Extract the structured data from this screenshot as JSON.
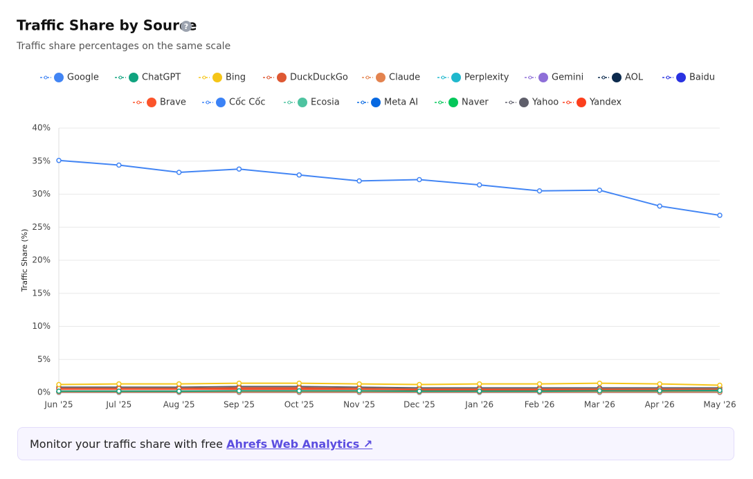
{
  "chart_data": {
    "type": "line",
    "title": "Traffic Share by Source",
    "subtitle": "Traffic share percentages on the same scale",
    "y_label": "Traffic Share (%)",
    "categories": [
      "Jun '25",
      "Jul '25",
      "Aug '25",
      "Sep '25",
      "Oct '25",
      "Nov '25",
      "Dec '25",
      "Jan '26",
      "Feb '26",
      "Mar '26",
      "Apr '26",
      "May '26"
    ],
    "ylim": [
      0,
      40
    ],
    "yticks": [
      {
        "value": 0,
        "label": "0%"
      },
      {
        "value": 5,
        "label": "5%"
      },
      {
        "value": 10,
        "label": "10%"
      },
      {
        "value": 15,
        "label": "15%"
      },
      {
        "value": 20,
        "label": "20%"
      },
      {
        "value": 25,
        "label": "25%"
      },
      {
        "value": 30,
        "label": "30%"
      },
      {
        "value": 35,
        "label": "35%"
      },
      {
        "value": 40,
        "label": "40%"
      }
    ],
    "grid": true,
    "series": [
      {
        "name": "Google",
        "color": "#4285f4",
        "values": [
          35.1,
          34.4,
          33.3,
          33.8,
          32.9,
          32.0,
          32.2,
          31.4,
          30.5,
          30.6,
          28.2,
          26.8
        ]
      },
      {
        "name": "ChatGPT",
        "color": "#10a37f",
        "values": [
          0.2,
          0.2,
          0.2,
          0.25,
          0.25,
          0.25,
          0.2,
          0.2,
          0.2,
          0.25,
          0.25,
          0.3
        ]
      },
      {
        "name": "Bing",
        "color": "#f5c518",
        "values": [
          1.2,
          1.3,
          1.3,
          1.4,
          1.4,
          1.3,
          1.2,
          1.3,
          1.3,
          1.4,
          1.3,
          1.1
        ]
      },
      {
        "name": "DuckDuckGo",
        "color": "#de5833",
        "values": [
          0.6,
          0.6,
          0.6,
          0.7,
          0.7,
          0.6,
          0.5,
          0.5,
          0.5,
          0.5,
          0.5,
          0.5
        ]
      },
      {
        "name": "Claude",
        "color": "#e3834f",
        "values": [
          0.05,
          0.05,
          0.05,
          0.05,
          0.05,
          0.05,
          0.05,
          0.05,
          0.05,
          0.05,
          0.05,
          0.05
        ]
      },
      {
        "name": "Perplexity",
        "color": "#20b8cd",
        "values": [
          0.1,
          0.1,
          0.1,
          0.1,
          0.1,
          0.1,
          0.1,
          0.1,
          0.1,
          0.1,
          0.1,
          0.1
        ]
      },
      {
        "name": "Gemini",
        "color": "#8e6fd8",
        "values": [
          0.05,
          0.05,
          0.05,
          0.05,
          0.05,
          0.05,
          0.05,
          0.05,
          0.05,
          0.05,
          0.05,
          0.05
        ]
      },
      {
        "name": "AOL",
        "color": "#0c2a4d",
        "values": [
          0.1,
          0.1,
          0.1,
          0.1,
          0.1,
          0.1,
          0.1,
          0.1,
          0.1,
          0.1,
          0.1,
          0.1
        ]
      },
      {
        "name": "Baidu",
        "color": "#2932e1",
        "values": [
          0.1,
          0.1,
          0.1,
          0.1,
          0.1,
          0.1,
          0.1,
          0.1,
          0.1,
          0.1,
          0.1,
          0.1
        ]
      },
      {
        "name": "Brave",
        "color": "#fb542b",
        "values": [
          0.2,
          0.2,
          0.2,
          0.2,
          0.2,
          0.2,
          0.2,
          0.2,
          0.2,
          0.2,
          0.2,
          0.2
        ]
      },
      {
        "name": "Cốc Cốc",
        "color": "#3b82f6",
        "values": [
          0.05,
          0.05,
          0.05,
          0.05,
          0.05,
          0.05,
          0.05,
          0.05,
          0.05,
          0.05,
          0.05,
          0.05
        ]
      },
      {
        "name": "Ecosia",
        "color": "#4ec3a0",
        "values": [
          0.1,
          0.1,
          0.1,
          0.1,
          0.1,
          0.1,
          0.1,
          0.1,
          0.1,
          0.1,
          0.1,
          0.1
        ]
      },
      {
        "name": "Meta AI",
        "color": "#0668e1",
        "values": [
          0.02,
          0.02,
          0.02,
          0.02,
          0.02,
          0.02,
          0.02,
          0.02,
          0.02,
          0.02,
          0.02,
          0.02
        ]
      },
      {
        "name": "Naver",
        "color": "#03c75a",
        "values": [
          0.1,
          0.1,
          0.1,
          0.1,
          0.1,
          0.1,
          0.1,
          0.1,
          0.1,
          0.1,
          0.1,
          0.1
        ]
      },
      {
        "name": "Yahoo",
        "color": "#5f5f6b",
        "values": [
          0.8,
          0.8,
          0.8,
          0.9,
          0.9,
          0.8,
          0.7,
          0.7,
          0.7,
          0.7,
          0.7,
          0.7
        ]
      },
      {
        "name": "Yandex",
        "color": "#fc3f1d",
        "values": [
          0.5,
          0.5,
          0.5,
          0.5,
          0.5,
          0.5,
          0.4,
          0.4,
          0.4,
          0.4,
          0.4,
          0.4
        ]
      }
    ]
  },
  "banner": {
    "text": "Monitor your traffic share with free",
    "link": "Ahrefs Web Analytics ↗"
  }
}
